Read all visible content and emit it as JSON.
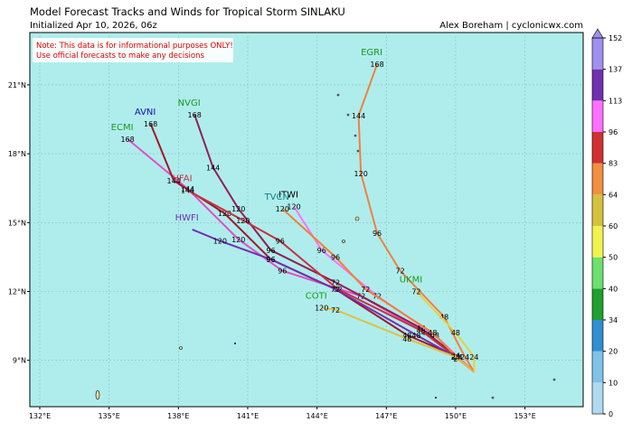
{
  "map": {
    "title": "Model Forecast Tracks and Winds for Tropical Storm SINLAKU",
    "subtitle": "Initialized Apr 10, 2026, 06z",
    "credit": "Alex Boreham | cyclonicwx.com",
    "note": [
      "Note: This data is for informational purposes ONLY!",
      "Use official forecasts to make any decisions"
    ],
    "lonlim": [
      131.57,
      155.52
    ],
    "latlim": [
      6.98,
      23.28
    ],
    "lon_ticks": [
      {
        "value": 132,
        "label": "132°E"
      },
      {
        "value": 135,
        "label": "135°E"
      },
      {
        "value": 138,
        "label": "138°E"
      },
      {
        "value": 141,
        "label": "141°E"
      },
      {
        "value": 144,
        "label": "144°E"
      },
      {
        "value": 147,
        "label": "147°E"
      },
      {
        "value": 150,
        "label": "150°E"
      },
      {
        "value": 153,
        "label": "153°E"
      }
    ],
    "lat_ticks": [
      {
        "value": 9,
        "label": "9°N"
      },
      {
        "value": 12,
        "label": "12°N"
      },
      {
        "value": 15,
        "label": "15°N"
      },
      {
        "value": 18,
        "label": "18°N"
      },
      {
        "value": 21,
        "label": "21°N"
      }
    ],
    "grid": true,
    "colorbar": {
      "ticks": [
        0,
        10,
        20,
        34,
        40,
        50,
        60,
        64,
        83,
        96,
        113,
        137,
        152
      ],
      "colors": [
        "#b0daf0",
        "#80c2ea",
        "#2f8fd0",
        "#1fa02f",
        "#6ee06e",
        "#f2f24e",
        "#d4c23e",
        "#f09040",
        "#d03030",
        "#ff70ff",
        "#7030b0",
        "#a090f0"
      ]
    },
    "tracks": [
      {
        "name": "ECMI",
        "color": "#e050c0",
        "label_color": "#1a9a1a",
        "points": [
          {
            "lon": 150.8,
            "lat": 8.5
          },
          {
            "lon": 150.1,
            "lat": 9.07,
            "hour": 24
          },
          {
            "lon": 148.7,
            "lat": 10.2,
            "hour": 48
          },
          {
            "lon": 145.9,
            "lat": 11.8,
            "hour": 72
          },
          {
            "lon": 142.5,
            "lat": 12.9,
            "hour": 96
          },
          {
            "lon": 140.6,
            "lat": 14.27,
            "hour": 120
          },
          {
            "lon": 138.4,
            "lat": 16.47,
            "hour": 144
          },
          {
            "lon": 135.8,
            "lat": 18.64,
            "hour": 168
          }
        ]
      },
      {
        "name": "AVNI",
        "color": "#a01828",
        "label_color": "#1010c0",
        "points": [
          {
            "lon": 150.8,
            "lat": 8.5
          },
          {
            "lon": 150.1,
            "lat": 9.15,
            "hour": 24
          },
          {
            "lon": 147.9,
            "lat": 10.1,
            "hour": 48
          },
          {
            "lon": 144.8,
            "lat": 12.1,
            "hour": 72
          },
          {
            "lon": 142.0,
            "lat": 13.4,
            "hour": 96
          },
          {
            "lon": 140.0,
            "lat": 15.4,
            "hour": 120
          },
          {
            "lon": 137.8,
            "lat": 16.83,
            "hour": 144
          },
          {
            "lon": 136.8,
            "lat": 19.3,
            "hour": 168
          }
        ]
      },
      {
        "name": "NVGI",
        "color": "#902050",
        "label_color": "#1a9a1a",
        "points": [
          {
            "lon": 150.8,
            "lat": 8.5
          },
          {
            "lon": 150.0,
            "lat": 9.2,
            "hour": 24
          },
          {
            "lon": 148.5,
            "lat": 10.4,
            "hour": 48
          },
          {
            "lon": 144.8,
            "lat": 12.4,
            "hour": 72
          },
          {
            "lon": 142.0,
            "lat": 13.8,
            "hour": 96
          },
          {
            "lon": 140.6,
            "lat": 15.6,
            "hour": 120
          },
          {
            "lon": 139.5,
            "lat": 17.4,
            "hour": 144
          },
          {
            "lon": 138.7,
            "lat": 19.7,
            "hour": 168
          }
        ]
      },
      {
        "name": "HFAI",
        "color": "#c83040",
        "label_color": "#c83040",
        "points": [
          {
            "lon": 150.8,
            "lat": 8.5
          },
          {
            "lon": 150.0,
            "lat": 9.15,
            "hour": 24
          },
          {
            "lon": 148.5,
            "lat": 10.3,
            "hour": 48
          },
          {
            "lon": 144.9,
            "lat": 12.1,
            "hour": 72
          },
          {
            "lon": 142.4,
            "lat": 14.2,
            "hour": 96
          },
          {
            "lon": 140.8,
            "lat": 15.1,
            "hour": 120
          },
          {
            "lon": 138.4,
            "lat": 16.4,
            "hour": 144
          }
        ]
      },
      {
        "name": "HWFI",
        "color": "#7030b0",
        "label_color": "#7030b0",
        "points": [
          {
            "lon": 150.8,
            "lat": 8.5
          },
          {
            "lon": 150.0,
            "lat": 9.15,
            "hour": 24
          },
          {
            "lon": 148.3,
            "lat": 10.1,
            "hour": 48
          },
          {
            "lon": 144.8,
            "lat": 12.1,
            "hour": 72
          },
          {
            "lon": 142.0,
            "lat": 13.4,
            "hour": 96
          },
          {
            "lon": 139.8,
            "lat": 14.2,
            "hour": 120
          },
          {
            "lon": 138.6,
            "lat": 14.7
          }
        ]
      },
      {
        "name": "ITWI",
        "color": "#ff70ff",
        "label_color": "#000000",
        "points": [
          {
            "lon": 150.8,
            "lat": 8.5
          },
          {
            "lon": 150.1,
            "lat": 9.15,
            "hour": 24
          },
          {
            "lon": 149.1,
            "lat": 10.1,
            "hour": 48
          },
          {
            "lon": 146.6,
            "lat": 11.8,
            "hour": 72
          },
          {
            "lon": 144.2,
            "lat": 13.8,
            "hour": 96
          },
          {
            "lon": 143.0,
            "lat": 15.7,
            "hour": 120
          }
        ]
      },
      {
        "name": "TVCN",
        "color": "#f08030",
        "label_color": "#108080",
        "points": [
          {
            "lon": 150.8,
            "lat": 8.5
          },
          {
            "lon": 150.0,
            "lat": 9.2,
            "hour": 24
          },
          {
            "lon": 149.0,
            "lat": 10.2,
            "hour": 48
          },
          {
            "lon": 146.1,
            "lat": 12.1,
            "hour": 72
          },
          {
            "lon": 144.8,
            "lat": 13.5,
            "hour": 96
          },
          {
            "lon": 142.5,
            "lat": 15.6,
            "hour": 120
          }
        ]
      },
      {
        "name": "COTI",
        "color": "#e0c040",
        "label_color": "#1a9a1a",
        "points": [
          {
            "lon": 150.8,
            "lat": 8.5
          },
          {
            "lon": 150.0,
            "lat": 9.15,
            "hour": 24
          },
          {
            "lon": 147.9,
            "lat": 9.94,
            "hour": 48
          },
          {
            "lon": 144.8,
            "lat": 11.2,
            "hour": 72
          },
          {
            "lon": 144.2,
            "lat": 11.3,
            "hour": 120
          }
        ]
      },
      {
        "name": "EGRI",
        "color": "#f08040",
        "label_color": "#1a9a1a",
        "points": [
          {
            "lon": 150.8,
            "lat": 8.5
          },
          {
            "lon": 150.4,
            "lat": 9.15,
            "hour": 24
          },
          {
            "lon": 149.5,
            "lat": 10.9,
            "hour": 48
          },
          {
            "lon": 147.6,
            "lat": 12.9,
            "hour": 72
          },
          {
            "lon": 146.6,
            "lat": 14.54,
            "hour": 96
          },
          {
            "lon": 145.9,
            "lat": 17.14,
            "hour": 120
          },
          {
            "lon": 145.8,
            "lat": 19.66,
            "hour": 144
          },
          {
            "lon": 146.6,
            "lat": 21.9,
            "hour": 168
          }
        ]
      },
      {
        "name": "UKMI",
        "color": "#e8d040",
        "label_color": "#1a9a1a",
        "points": [
          {
            "lon": 150.8,
            "lat": 8.5
          },
          {
            "lon": 150.8,
            "lat": 9.15,
            "hour": 24
          },
          {
            "lon": 150.0,
            "lat": 10.2,
            "hour": 48
          },
          {
            "lon": 148.3,
            "lat": 12.0,
            "hour": 72
          }
        ]
      }
    ]
  }
}
